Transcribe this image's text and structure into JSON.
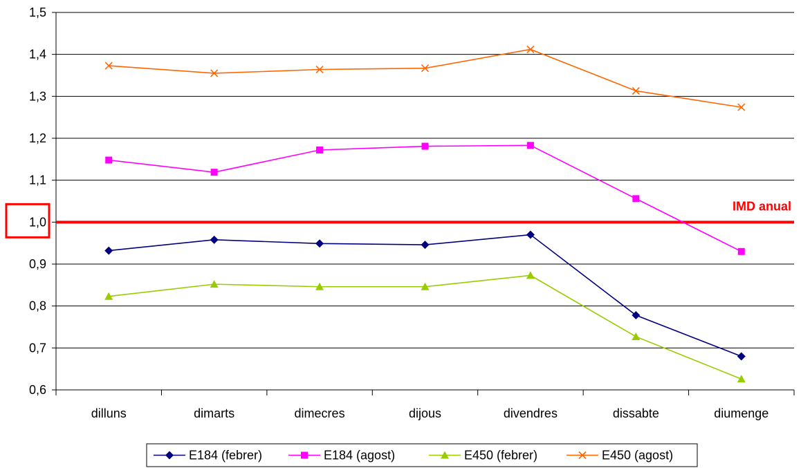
{
  "chart_data": {
    "type": "line",
    "title": "",
    "xlabel": "",
    "ylabel": "",
    "categories": [
      "dilluns",
      "dimarts",
      "dimecres",
      "dijous",
      "divendres",
      "dissabte",
      "diumenge"
    ],
    "ylim": [
      0.6,
      1.5
    ],
    "yticks": [
      "0,6",
      "0,7",
      "0,8",
      "0,9",
      "1,0",
      "1,1",
      "1,2",
      "1,3",
      "1,4",
      "1,5"
    ],
    "grid": true,
    "legend_position": "bottom",
    "series": [
      {
        "name": "E184 (febrer)",
        "color": "#000080",
        "marker": "diamond",
        "values": [
          0.932,
          0.958,
          0.949,
          0.946,
          0.97,
          0.778,
          0.68
        ]
      },
      {
        "name": "E184 (agost)",
        "color": "#ff00ff",
        "marker": "square",
        "values": [
          1.148,
          1.119,
          1.172,
          1.181,
          1.183,
          1.056,
          0.93
        ]
      },
      {
        "name": "E450 (febrer)",
        "color": "#99cc00",
        "marker": "triangle",
        "values": [
          0.823,
          0.852,
          0.846,
          0.846,
          0.873,
          0.727,
          0.626
        ]
      },
      {
        "name": "E450 (agost)",
        "color": "#ff6600",
        "marker": "x",
        "values": [
          1.373,
          1.355,
          1.364,
          1.367,
          1.412,
          1.313,
          1.274
        ]
      }
    ],
    "reference_line": {
      "value": 1.0,
      "label": "IMD anual",
      "color": "#ff0000"
    }
  }
}
